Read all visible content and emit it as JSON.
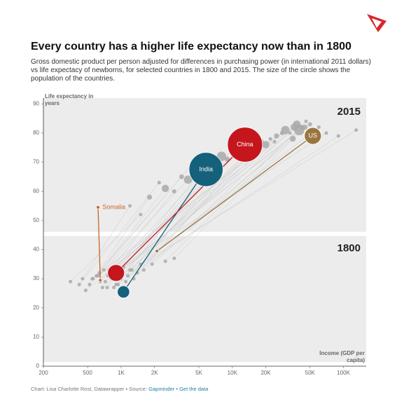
{
  "chart_data": {
    "type": "scatter",
    "title": "Every country has a higher life expectancy now than in 1800",
    "subtitle": "Gross domestic product per person adjusted for differences in purchasing power (in international 2011 dollars) vs life expectacy of newborns, for selected countries in 1800 and 2015. The size of the circle shows the population of the countries.",
    "ylabel": "Life expectancy in years",
    "xlabel": "Income (GDP per capita)",
    "annotations": [
      "2015",
      "1800"
    ],
    "xscale": "log",
    "xlim": [
      200,
      160000
    ],
    "ylim": [
      0,
      92
    ],
    "xticks": [
      200,
      500,
      {
        "value": 1000,
        "label": "1K"
      },
      {
        "value": 2000,
        "label": "2K"
      },
      {
        "value": 5000,
        "label": "5K"
      },
      {
        "value": 10000,
        "label": "10K"
      },
      {
        "value": 20000,
        "label": "20K"
      },
      {
        "value": 50000,
        "label": "50K"
      },
      {
        "value": 100000,
        "label": "100K"
      }
    ],
    "yticks": [
      0,
      10,
      20,
      30,
      40,
      50,
      60,
      70,
      80,
      90
    ],
    "grid": false,
    "background": {
      "color": "#a9a9a9",
      "x1800": [
        450,
        520,
        600,
        650,
        700,
        750,
        800,
        850,
        900,
        950,
        1000,
        1100,
        1200,
        1300,
        1400,
        1500,
        480,
        550,
        620,
        680,
        720,
        780,
        820,
        880,
        940,
        1000,
        1050,
        1150,
        1250,
        350,
        420,
        560,
        640,
        760,
        860,
        960,
        1600,
        1900,
        2500,
        3000
      ],
      "y1800": [
        30,
        28,
        31,
        29,
        33,
        27,
        32,
        30,
        28,
        34,
        31,
        29,
        33,
        30,
        32,
        35,
        26,
        30,
        31,
        27,
        29,
        33,
        30,
        32,
        28,
        30,
        34,
        31,
        33,
        29,
        28,
        30,
        32,
        31,
        27,
        30,
        33,
        35,
        36,
        37
      ],
      "x2015": [
        1200,
        1800,
        2500,
        3000,
        4000,
        5000,
        6000,
        7000,
        8000,
        9000,
        10000,
        12000,
        14000,
        16000,
        18000,
        20000,
        22000,
        25000,
        28000,
        30000,
        33000,
        36000,
        40000,
        45000,
        50000,
        60000,
        70000,
        90000,
        130000,
        1500,
        2200,
        3500,
        4500,
        11000,
        15000,
        24000,
        38000,
        42000,
        46000,
        35000
      ],
      "y2015": [
        55,
        58,
        61,
        60,
        64,
        66,
        68,
        70,
        72,
        71,
        74,
        75,
        74,
        76,
        77,
        76,
        78,
        79,
        80,
        81,
        80,
        82,
        81,
        82,
        83,
        82,
        80,
        79,
        81,
        52,
        63,
        65,
        70,
        73,
        75,
        77,
        83,
        82,
        84,
        78
      ],
      "pop1800": [
        3,
        2,
        5,
        1,
        4,
        2,
        6,
        3,
        2,
        8,
        4,
        2,
        3,
        1,
        2,
        5,
        1,
        2,
        3,
        2,
        1,
        4,
        2,
        3,
        1,
        6,
        2,
        3,
        1,
        1,
        2,
        3,
        1,
        2,
        4,
        2,
        3,
        5,
        8,
        2
      ],
      "pop2015": [
        10,
        30,
        60,
        20,
        80,
        15,
        40,
        25,
        100,
        30,
        50,
        20,
        70,
        10,
        40,
        60,
        15,
        30,
        20,
        80,
        10,
        60,
        120,
        30,
        20,
        10,
        5,
        3,
        2,
        8,
        15,
        25,
        35,
        45,
        20,
        10,
        65,
        30,
        5,
        40
      ]
    },
    "series": [
      {
        "name": "Somalia",
        "color": "#c8662b",
        "x": [
          650,
          620
        ],
        "y": [
          29.5,
          54.5
        ],
        "size": [
          1,
          11
        ]
      },
      {
        "name": "US",
        "color": "#9b7540",
        "x": [
          2100,
          53000
        ],
        "y": [
          39.5,
          79
        ],
        "size": [
          6,
          320
        ]
      },
      {
        "name": "India",
        "color": "#15607a",
        "x": [
          1050,
          5800
        ],
        "y": [
          25.5,
          67.5
        ],
        "size": [
          170,
          1310
        ]
      },
      {
        "name": "China",
        "color": "#c4161c",
        "x": [
          900,
          13000
        ],
        "y": [
          32,
          76
        ],
        "size": [
          320,
          1380
        ]
      }
    ],
    "footer": {
      "credit": "Chart: Lisa Charlotte Rost, Datawrapper • Source:",
      "source": "Gapminder",
      "separator": "•",
      "link": "Get the data"
    }
  }
}
